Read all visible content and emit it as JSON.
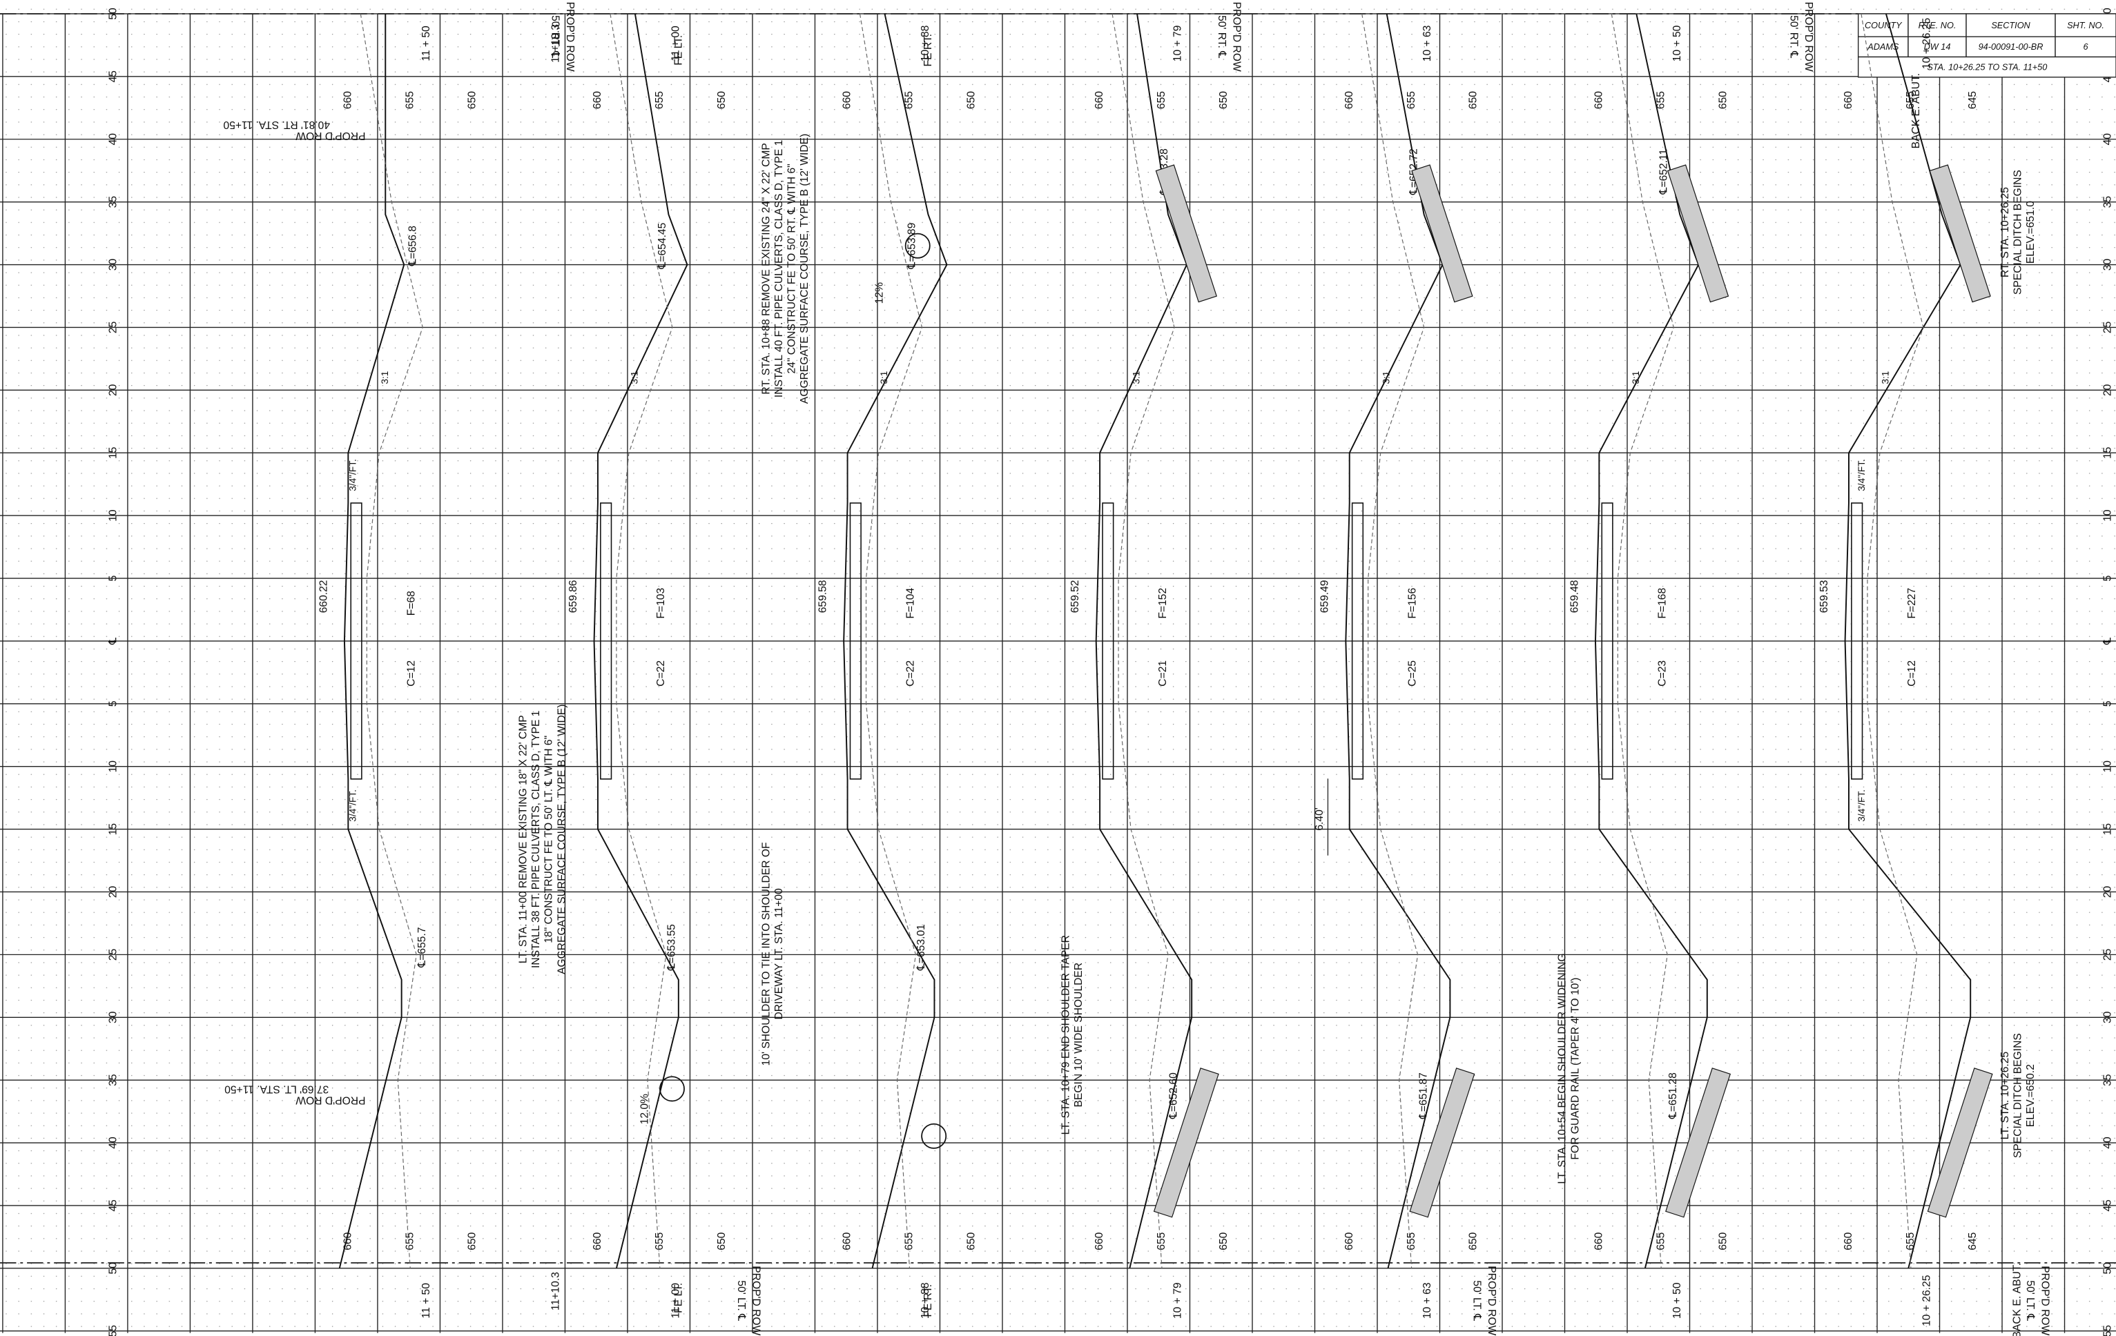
{
  "title_block": {
    "county_h": "COUNTY",
    "rte_h": "RTE. NO.",
    "section_h": "SECTION",
    "sht_h": "SHT. NO.",
    "county": "ADAMS",
    "rte": "DW 14",
    "section": "94-00091-00-BR",
    "sht": "6",
    "range": "STA. 10+26.25 TO STA. 11+50"
  },
  "offset_labels": [
    "50",
    "45",
    "40",
    "35",
    "30",
    "25",
    "20",
    "15",
    "10",
    "5",
    "℄",
    "5",
    "10",
    "15",
    "20",
    "25",
    "30",
    "35",
    "40",
    "45",
    "50",
    "55"
  ],
  "edge_labels": {
    "rt_row": "PROP'D ROW",
    "rt_cl": "50' RT. ℄",
    "lt_row": "PROP'D ROW",
    "lt_cl": "50' LT. ℄",
    "fe_lt": "FE LT.",
    "fe_rt": "FE RT.",
    "back_abut": "BACK E. ABUT."
  },
  "sections": [
    {
      "station": "11 + 50",
      "elevs": [
        "660",
        "655",
        "650"
      ],
      "center": "660.22",
      "fill": "F=68",
      "cut": "C=12",
      "ditch_rt": "℄=656.8",
      "ditch_lt": "℄=655.7"
    },
    {
      "station": "11 + 00",
      "elevs": [
        "660",
        "655",
        "650"
      ],
      "center": "659.86",
      "fill": "F=103",
      "cut": "C=22",
      "ditch_rt": "℄=654.45",
      "ditch_lt": "℄=653.55"
    },
    {
      "station": "10 + 88",
      "elevs": [
        "660",
        "655",
        "650"
      ],
      "center": "659.58",
      "fill": "F=104",
      "cut": "C=22",
      "ditch_rt": "℄=653.89",
      "ditch_lt": "℄=653.01"
    },
    {
      "station": "10 + 79",
      "elevs": [
        "660",
        "655",
        "650"
      ],
      "center": "659.52",
      "fill": "F=152",
      "cut": "C=21",
      "ditch_rt": "℄=653.28",
      "ditch_lt": "℄=652.60"
    },
    {
      "station": "10 + 63",
      "elevs": [
        "660",
        "655",
        "650"
      ],
      "center": "659.49",
      "fill": "F=156",
      "cut": "C=25",
      "ditch_rt": "℄=652.72",
      "ditch_lt": "℄=651.87"
    },
    {
      "station": "10 + 50",
      "elevs": [
        "660",
        "655",
        "650"
      ],
      "center": "659.48",
      "fill": "F=168",
      "cut": "C=23",
      "ditch_rt": "℄=652.11",
      "ditch_lt": "℄=651.28"
    },
    {
      "station": "10 + 26.25",
      "elevs": [
        "660",
        "655",
        "645"
      ],
      "center": "659.53",
      "fill": "F=227",
      "cut": "C=12",
      "ditch_rt": "",
      "ditch_lt": ""
    }
  ],
  "station_extra": "11+10.3",
  "slopes": {
    "s31": "3:1",
    "cross": "3/4\"/FT.",
    "pct": "12%",
    "pct2": "12.0%",
    "width": "6.40'"
  },
  "notes": [
    [
      "RT. STA. 10+88 REMOVE EXISTING 24\" X 22' CMP",
      "INSTALL 40 FT. PIPE CULVERTS, CLASS D, TYPE 1",
      "24\" CONSTRUCT FE TO 50' RT. ℄ WITH 6\"",
      "AGGREGATE SURFACE COURSE, TYPE B (12' WIDE)"
    ],
    [
      "LT. STA. 11+00 REMOVE EXISTING 18\" X 22' CMP",
      "INSTALL 38 FT. PIPE CULVERTS, CLASS D, TYPE 1",
      "18\" CONSTRUCT FE TO 50' LT. ℄ WITH 6\"",
      "AGGREGATE SURFACE COURSE, TYPE B (12' WIDE)"
    ],
    [
      "10' SHOULDER TO TIE INTO SHOULDER OF",
      "DRIVEWAY LT. STA. 11+00"
    ],
    [
      "LT. STA. 10+79 END SHOULDER TAPER",
      "BEGIN 10' WIDE SHOULDER"
    ],
    [
      "LT. STA. 10+54 BEGIN SHOULDER WIDENING",
      "FOR GUARD RAIL (TAPER 4' TO 10')"
    ],
    [
      "RT. STA. 10+26.25",
      "SPECIAL DITCH BEGINS",
      "ELEV.=651.0"
    ],
    [
      "LT. STA. 10+26.25",
      "SPECIAL DITCH BEGINS",
      "ELEV.=650.2"
    ],
    [
      "PROP'D ROW",
      "40.81' RT. STA. 11+50"
    ],
    [
      "PROP'D ROW",
      "37.69' LT. STA. 11+50"
    ]
  ]
}
